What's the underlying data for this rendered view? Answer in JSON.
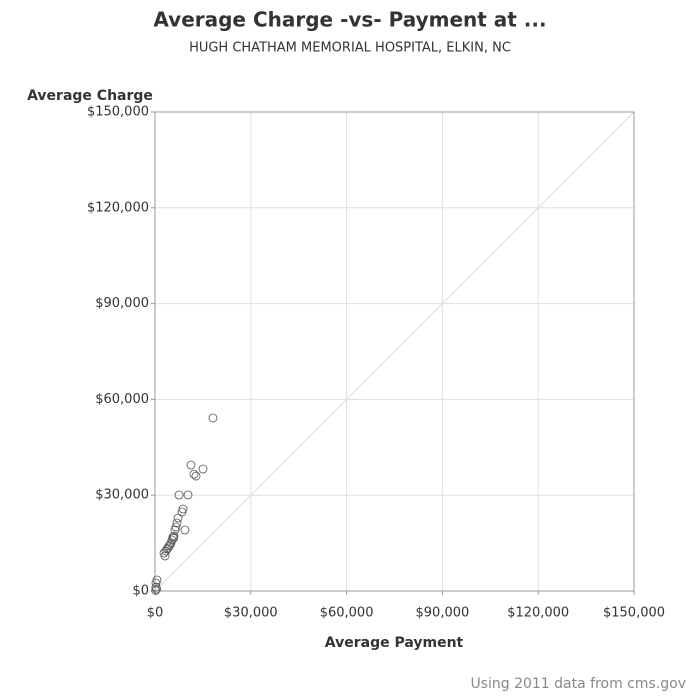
{
  "chart_data": {
    "type": "scatter",
    "title": "Average Charge -vs- Payment at ...",
    "subtitle": "HUGH CHATHAM MEMORIAL HOSPITAL, ELKIN, NC",
    "x_label": "Average Payment",
    "y_label": "Average Charge",
    "footnote": "Using 2011 data from cms.gov",
    "color": "#555555",
    "grid": true,
    "reference_line": true,
    "x": [
      18160,
      11270,
      15030,
      12200,
      12840,
      7520,
      10330,
      8450,
      8770,
      9390,
      7200,
      6890,
      6260,
      6580,
      5640,
      5950,
      5320,
      4700,
      5010,
      4070,
      4380,
      3440,
      3760,
      3130,
      2820,
      5800,
      630,
      310,
      300,
      500,
      200
    ],
    "y": [
      54170,
      39460,
      38200,
      36600,
      36000,
      30060,
      30060,
      24740,
      25680,
      19100,
      22860,
      21290,
      19100,
      20040,
      16910,
      17220,
      15970,
      14400,
      15030,
      13470,
      14090,
      12530,
      13150,
      10960,
      11900,
      16500,
      3440,
      2500,
      1200,
      600,
      200
    ],
    "xlim": [
      0,
      150000
    ],
    "ylim": [
      0,
      150000
    ],
    "xticks": [
      {
        "value": 0,
        "label": "$0"
      },
      {
        "value": 30000,
        "label": "$30,000"
      },
      {
        "value": 60000,
        "label": "$60,000"
      },
      {
        "value": 90000,
        "label": "$90,000"
      },
      {
        "value": 120000,
        "label": "$120,000"
      },
      {
        "value": 150000,
        "label": "$150,000"
      }
    ],
    "yticks": [
      {
        "value": 0,
        "label": "$0"
      },
      {
        "value": 30000,
        "label": "$30,000"
      },
      {
        "value": 60000,
        "label": "$60,000"
      },
      {
        "value": 90000,
        "label": "$90,000"
      },
      {
        "value": 120000,
        "label": "$120,000"
      },
      {
        "value": 150000,
        "label": "$150,000"
      }
    ]
  }
}
